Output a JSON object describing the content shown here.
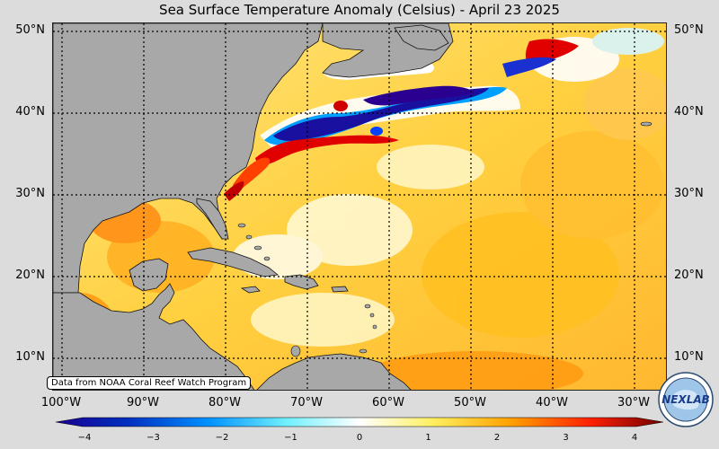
{
  "title": "Sea Surface Temperature Anomaly (Celsius) - April 23 2025",
  "latitudes": [
    "50°N",
    "40°N",
    "30°N",
    "20°N",
    "10°N"
  ],
  "longitudes": [
    "100°W",
    "90°W",
    "80°W",
    "70°W",
    "60°W",
    "50°W",
    "40°W",
    "30°W"
  ],
  "credit": "Data from NOAA Coral Reef Watch Program",
  "colorbar": {
    "min": -4,
    "max": 4,
    "ticks": [
      "−4",
      "−3",
      "−2",
      "−1",
      "0",
      "1",
      "2",
      "3",
      "4"
    ],
    "colors": [
      "#1a0090",
      "#0050ff",
      "#00b0ff",
      "#80f0ff",
      "#ffffff",
      "#fff080",
      "#ffb000",
      "#ff4000",
      "#b00000",
      "#700000"
    ]
  },
  "logo_text": "NEXLAB",
  "colors": {
    "land": "#a8a8a8",
    "ocean_warm": "#ffd84a",
    "frame_bg": "#dcdcdc"
  }
}
